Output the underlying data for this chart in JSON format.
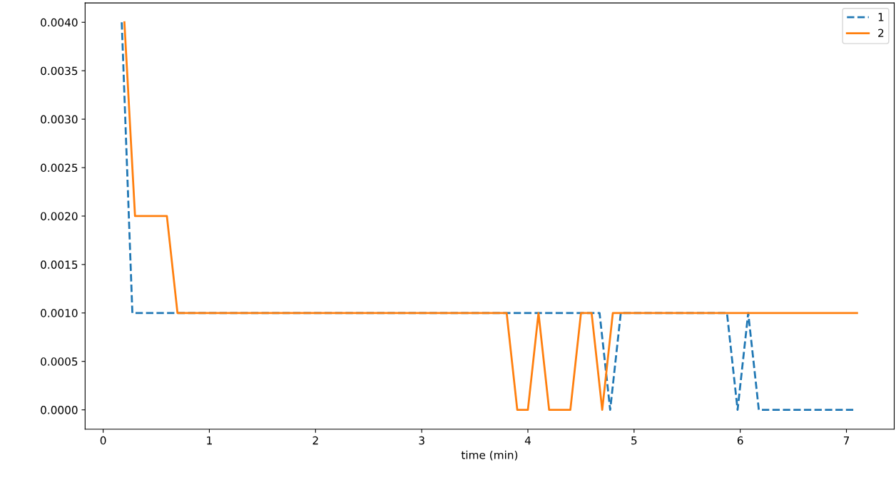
{
  "chart_data": {
    "type": "line",
    "xlabel": "time (min)",
    "series": [
      {
        "name": "1",
        "color": "#1f77b4",
        "line_style": "dashed",
        "x": [
          0.175,
          0.275,
          4.675,
          4.775,
          4.875,
          5.875,
          5.975,
          6.075,
          6.175,
          7.075
        ],
        "values": [
          0.004,
          0.001,
          0.001,
          0,
          0.001,
          0.001,
          0,
          0.001,
          0,
          0
        ]
      },
      {
        "name": "2",
        "color": "#ff7f0e",
        "line_style": "solid",
        "x": [
          0.2,
          0.3,
          0.6,
          0.7,
          3.8,
          3.9,
          4.0,
          4.1,
          4.2,
          4.4,
          4.5,
          4.6,
          4.7,
          4.8,
          7.1
        ],
        "values": [
          0.004,
          0.002,
          0.002,
          0.001,
          0.001,
          0,
          0,
          0.001,
          0,
          0,
          0.001,
          0.001,
          0,
          0.001,
          0.001
        ]
      }
    ],
    "xlim": [
      -0.17,
      7.45
    ],
    "xticks": [
      0,
      1,
      2,
      3,
      4,
      5,
      6,
      7
    ],
    "ylim": [
      -0.0002,
      0.0042
    ],
    "yticks": [
      {
        "value": 0,
        "label": "0.0000"
      },
      {
        "value": 0.0005,
        "label": "0.0005"
      },
      {
        "value": 0.001,
        "label": "0.0010"
      },
      {
        "value": 0.0015,
        "label": "0.0015"
      },
      {
        "value": 0.002,
        "label": "0.0020"
      },
      {
        "value": 0.0025,
        "label": "0.0025"
      },
      {
        "value": 0.003,
        "label": "0.0030"
      },
      {
        "value": 0.0035,
        "label": "0.0035"
      },
      {
        "value": 0.004,
        "label": "0.0040"
      }
    ],
    "legend": "top right",
    "grid": false,
    "marker": "none"
  }
}
